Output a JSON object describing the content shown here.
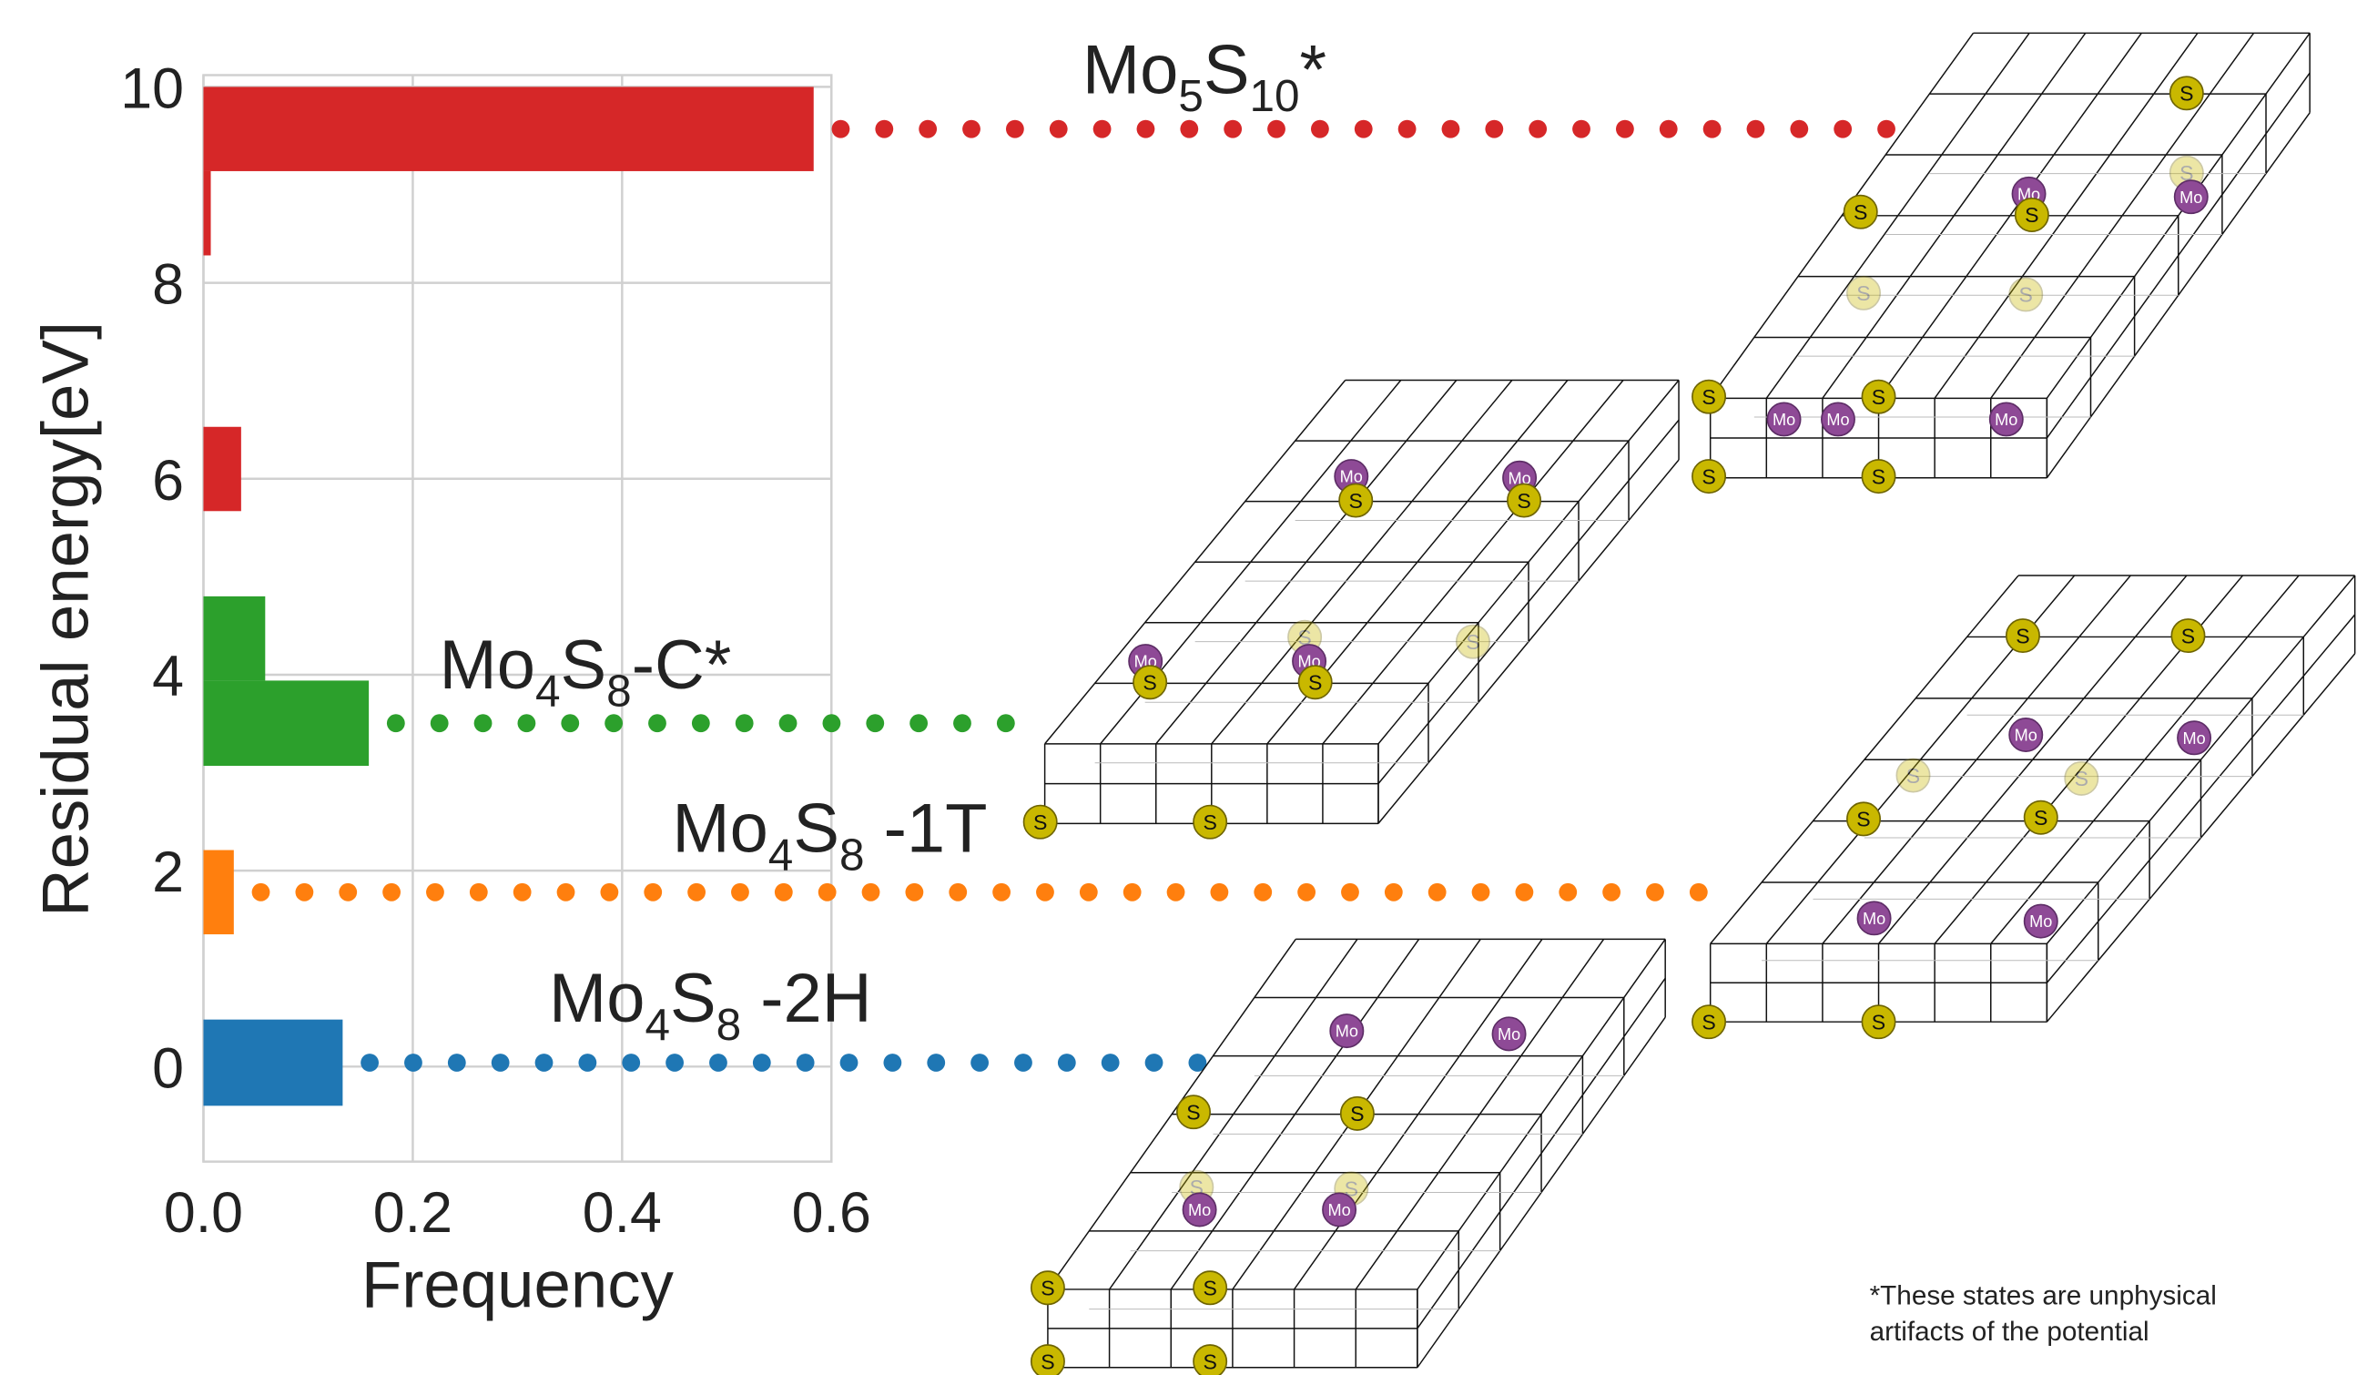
{
  "chart_data": {
    "type": "histogram",
    "orientation": "horizontal",
    "xlabel": "Frequency",
    "ylabel": "Residual energy[eV]",
    "bins": [
      -0.4,
      0.48,
      1.35,
      2.21,
      3.07,
      3.94,
      4.8,
      5.67,
      6.53,
      7.41,
      8.28,
      9.14,
      10.0
    ],
    "values": [
      0.133,
      0,
      0.029,
      0,
      0.158,
      0.059,
      0,
      0.036,
      0,
      0,
      0.007,
      0.583
    ],
    "colors": [
      "#1f77b4",
      "#1f77b4",
      "#ff7f0e",
      "#ff7f0e",
      "#2ca02c",
      "#2ca02c",
      "#d62728",
      "#d62728",
      "#d62728",
      "#d62728",
      "#d62728",
      "#d62728"
    ],
    "bin_labels": [
      [
        "Mo",
        "4",
        "S",
        "8",
        " -2H"
      ],
      null,
      [
        "Mo",
        "4",
        "S",
        "8",
        " -1T"
      ],
      null,
      [
        "Mo",
        "4",
        "S",
        "8",
        "-C*"
      ],
      null,
      null,
      null,
      null,
      null,
      null,
      [
        "Mo",
        "5",
        "S",
        "10",
        "*"
      ]
    ],
    "xlim": [
      0,
      0.6
    ],
    "ylim": [
      -0.97,
      10.12
    ],
    "xticks": [
      {
        "value": 0,
        "label": "0.0"
      },
      0.2,
      0.4,
      0.6
    ],
    "yticks": [
      0,
      2,
      4,
      6,
      8,
      10
    ],
    "grid": true,
    "atom_labels": [
      "S",
      "Mo"
    ],
    "footnote": [
      "*These states are unphysical",
      "artifacts of the potential"
    ]
  }
}
